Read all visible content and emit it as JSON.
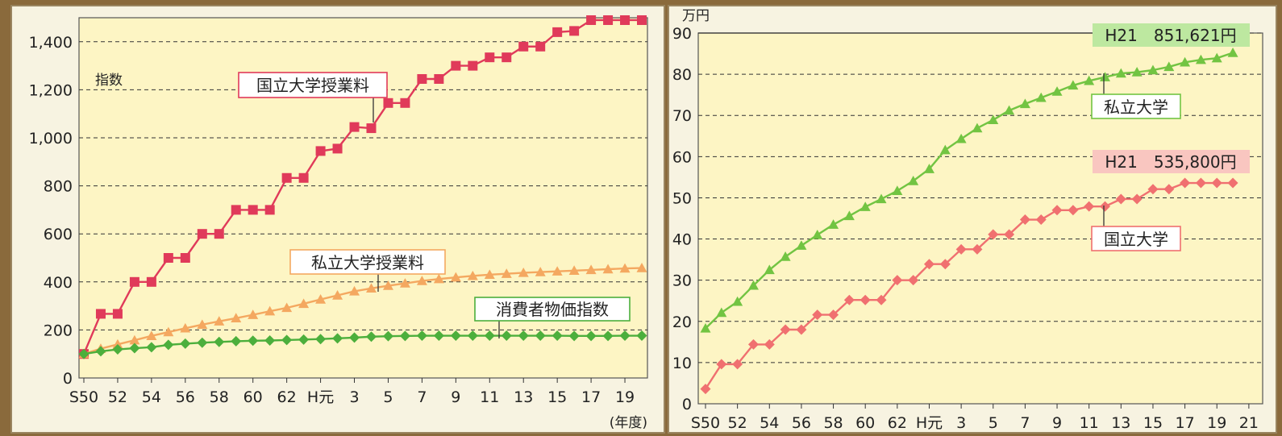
{
  "chart_data": [
    {
      "type": "line",
      "ylabel": "指数",
      "xunit": "(年度)",
      "ylim": [
        0,
        1500
      ],
      "yticks": [
        0,
        200,
        400,
        600,
        800,
        1000,
        1200,
        1400
      ],
      "ytick_labels": [
        "0",
        "200",
        "400",
        "600",
        "800",
        "1,000",
        "1,200",
        "1,400"
      ],
      "xtick_labels": [
        "S50",
        "52",
        "54",
        "56",
        "58",
        "60",
        "62",
        "H元",
        "3",
        "5",
        "7",
        "9",
        "11",
        "13",
        "15",
        "17",
        "19"
      ],
      "grid": true,
      "colors": {
        "national": "#e03a5a",
        "private": "#f4a860",
        "cpi": "#4caf3c"
      },
      "series": [
        {
          "name": "国立大学授業料",
          "values": [
            100,
            267,
            267,
            400,
            400,
            500,
            500,
            600,
            600,
            700,
            700,
            700,
            833,
            833,
            945,
            955,
            1045,
            1040,
            1145,
            1145,
            1245,
            1245,
            1300,
            1300,
            1335,
            1335,
            1380,
            1380,
            1440,
            1445,
            1490,
            1490,
            1490,
            1490
          ]
        },
        {
          "name": "私立大学授業料",
          "values": [
            100,
            122,
            140,
            157,
            175,
            191,
            207,
            222,
            236,
            249,
            263,
            278,
            292,
            309,
            327,
            344,
            361,
            373,
            384,
            394,
            404,
            412,
            419,
            425,
            430,
            434,
            438,
            441,
            444,
            447,
            450,
            453,
            456,
            458
          ]
        },
        {
          "name": "消費者物価指数",
          "values": [
            100,
            111,
            119,
            124,
            128,
            138,
            143,
            147,
            150,
            153,
            155,
            156,
            158,
            160,
            162,
            165,
            168,
            172,
            174,
            175,
            176,
            176,
            176,
            176,
            176,
            176,
            176,
            176,
            176,
            175,
            175,
            175,
            176,
            176
          ]
        }
      ]
    },
    {
      "type": "line",
      "yunit": "万円",
      "ylim": [
        0,
        90
      ],
      "yticks": [
        0,
        10,
        20,
        30,
        40,
        50,
        60,
        70,
        80,
        90
      ],
      "ytick_labels": [
        "0",
        "10",
        "20",
        "30",
        "40",
        "50",
        "60",
        "70",
        "80",
        "90"
      ],
      "xtick_labels": [
        "S50",
        "52",
        "54",
        "56",
        "58",
        "60",
        "62",
        "H元",
        "3",
        "5",
        "7",
        "9",
        "11",
        "13",
        "15",
        "17",
        "19",
        "21"
      ],
      "grid": true,
      "colors": {
        "private": "#72c442",
        "national": "#f07070",
        "private_box": "#bde8a0",
        "national_box": "#f9c6c0"
      },
      "series": [
        {
          "name": "私立大学",
          "values": [
            18.3,
            22.1,
            24.8,
            28.7,
            32.5,
            35.7,
            38.4,
            41.0,
            43.5,
            45.6,
            47.8,
            49.7,
            51.7,
            54.1,
            57.0,
            61.6,
            64.3,
            66.9,
            68.9,
            71.2,
            72.8,
            74.3,
            75.8,
            77.3,
            78.4,
            79.3,
            80.2,
            80.5,
            81.0,
            81.8,
            82.9,
            83.5,
            83.9,
            85.2
          ]
        },
        {
          "name": "国立大学",
          "values": [
            3.6,
            9.6,
            9.6,
            14.4,
            14.4,
            18.0,
            18.0,
            21.6,
            21.6,
            25.2,
            25.2,
            25.2,
            30.0,
            30.0,
            33.9,
            33.9,
            37.5,
            37.5,
            41.1,
            41.1,
            44.7,
            44.7,
            47.0,
            47.0,
            47.9,
            47.9,
            49.7,
            49.7,
            52.1,
            52.1,
            53.6,
            53.6,
            53.6,
            53.6
          ]
        }
      ],
      "annotations": [
        {
          "label": "H21　851,621円",
          "series": "私立大学"
        },
        {
          "label": "H21　535,800円",
          "series": "国立大学"
        }
      ]
    }
  ]
}
